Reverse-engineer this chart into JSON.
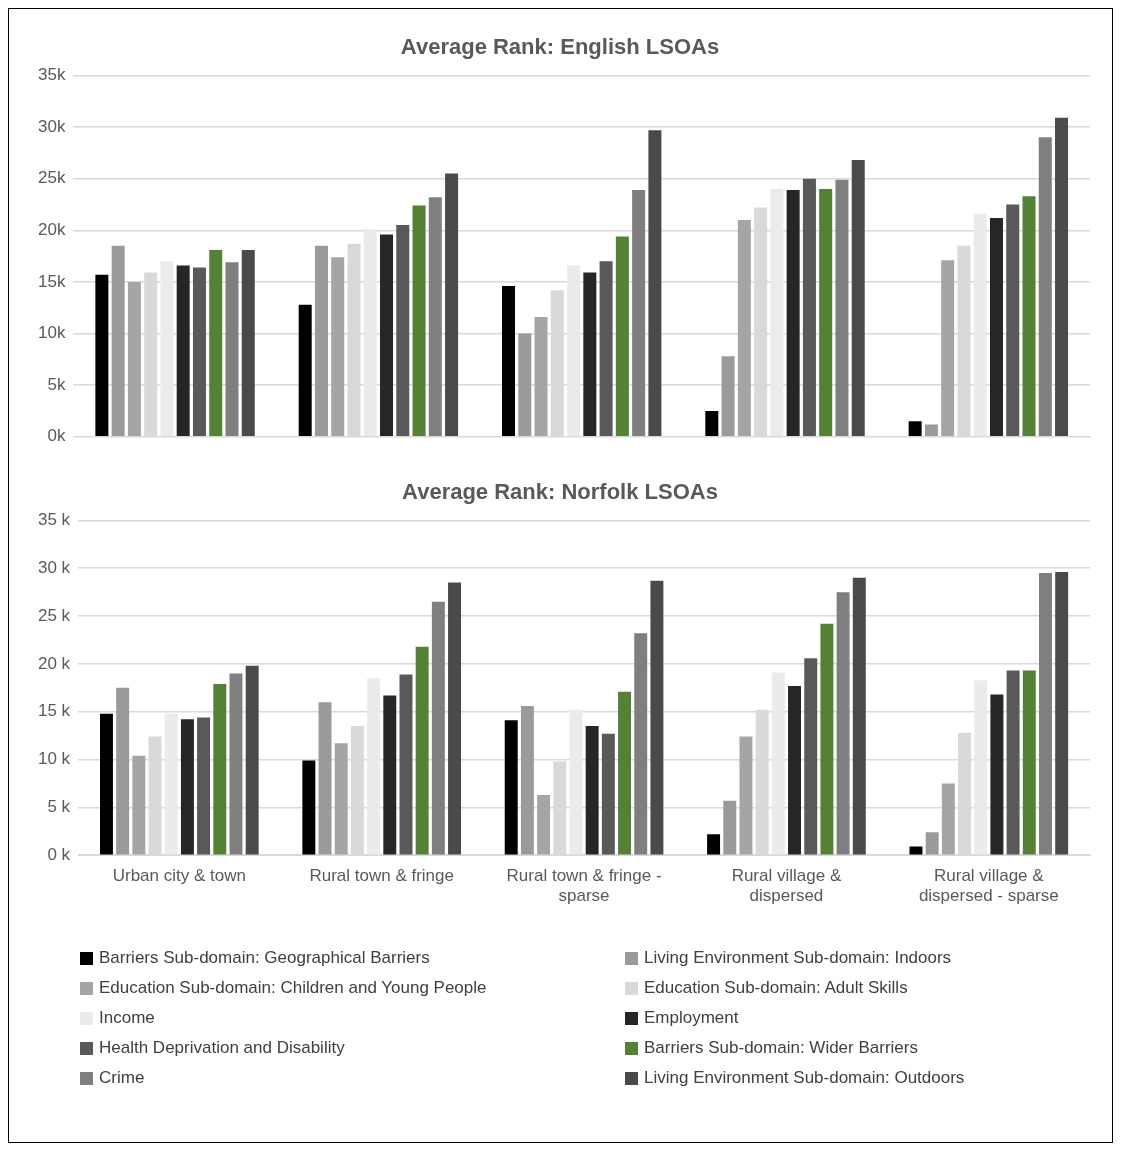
{
  "chart_data": [
    {
      "type": "bar",
      "title": "Average Rank: English LSOAs",
      "categories": [
        null,
        null,
        null,
        null,
        null
      ],
      "tick_labels": "y",
      "grid": "y",
      "legend": false,
      "ylim": [
        0,
        35000
      ],
      "yticks": [
        {
          "value": 0,
          "label": "0k"
        },
        {
          "value": 5000,
          "label": "5k"
        },
        {
          "value": 10000,
          "label": "10k"
        },
        {
          "value": 15000,
          "label": "15k"
        },
        {
          "value": 20000,
          "label": "20k"
        },
        {
          "value": 25000,
          "label": "25k"
        },
        {
          "value": 30000,
          "label": "30k"
        },
        {
          "value": 35000,
          "label": "35k"
        }
      ],
      "series": [
        {
          "color": "#000000",
          "values": [
            15700,
            12800,
            14600,
            2500,
            1500
          ]
        },
        {
          "color": "#9a9a9a",
          "values": [
            18500,
            18500,
            10000,
            7800,
            1200
          ]
        },
        {
          "color": "#a5a5a5",
          "values": [
            15000,
            17400,
            11600,
            21000,
            17100
          ]
        },
        {
          "color": "#d9d9d9",
          "values": [
            15900,
            18700,
            14200,
            22200,
            18500
          ]
        },
        {
          "color": "#ebebeb",
          "values": [
            17000,
            20100,
            16600,
            24000,
            21600
          ]
        },
        {
          "color": "#262626",
          "values": [
            16600,
            19600,
            15900,
            23900,
            21200
          ]
        },
        {
          "color": "#595959",
          "values": [
            16400,
            20500,
            17000,
            25000,
            22500
          ]
        },
        {
          "color": "#548235",
          "values": [
            18100,
            22400,
            19400,
            24000,
            23300
          ]
        },
        {
          "color": "#7f7f7f",
          "values": [
            16900,
            23200,
            23900,
            24900,
            29000
          ]
        },
        {
          "color": "#4a4a4a",
          "values": [
            18100,
            25500,
            29700,
            26800,
            30900
          ]
        }
      ]
    },
    {
      "type": "bar",
      "title": "Average Rank: Norfolk LSOAs",
      "categories": [
        "Urban city & town",
        "Rural town & fringe",
        "Rural town & fringe - sparse",
        "Rural village & dispersed",
        "Rural village & dispersed - sparse"
      ],
      "grid": "y",
      "legend": "bottom",
      "ylim": [
        0,
        35000
      ],
      "yticks": [
        {
          "value": 0,
          "label": "0 k"
        },
        {
          "value": 5000,
          "label": "5 k"
        },
        {
          "value": 10000,
          "label": "10 k"
        },
        {
          "value": 15000,
          "label": "15 k"
        },
        {
          "value": 20000,
          "label": "20 k"
        },
        {
          "value": 25000,
          "label": "25 k"
        },
        {
          "value": 30000,
          "label": "30 k"
        },
        {
          "value": 35000,
          "label": "35 k"
        }
      ],
      "series": [
        {
          "name": "Barriers Sub-domain:  Geographical Barriers",
          "color": "#000000",
          "values": [
            14800,
            9900,
            14100,
            2200,
            900
          ]
        },
        {
          "name": "Living Environment Sub-domain:  Indoors",
          "color": "#9a9a9a",
          "values": [
            17500,
            16000,
            15600,
            5700,
            2400
          ]
        },
        {
          "name": "Education Sub-domain: Children and Young People",
          "color": "#a5a5a5",
          "values": [
            10400,
            11700,
            6300,
            12400,
            7500
          ]
        },
        {
          "name": "Education Sub-domain: Adult Skills",
          "color": "#d9d9d9",
          "values": [
            12400,
            13500,
            9800,
            15200,
            12800
          ]
        },
        {
          "name": "Income",
          "color": "#ebebeb",
          "values": [
            14800,
            18500,
            15200,
            19100,
            18300
          ]
        },
        {
          "name": "Employment",
          "color": "#262626",
          "values": [
            14200,
            16700,
            13500,
            17700,
            16800
          ]
        },
        {
          "name": "Health Deprivation and Disability",
          "color": "#595959",
          "values": [
            14400,
            18900,
            12700,
            20600,
            19300
          ]
        },
        {
          "name": "Barriers Sub-domain:  Wider Barriers",
          "color": "#548235",
          "values": [
            17900,
            21800,
            17100,
            24200,
            19300
          ]
        },
        {
          "name": "Crime",
          "color": "#7f7f7f",
          "values": [
            19000,
            26500,
            23200,
            27500,
            29500
          ]
        },
        {
          "name": "Living Environment Sub-domain: Outdoors",
          "color": "#4a4a4a",
          "values": [
            19800,
            28500,
            28700,
            29000,
            29600
          ]
        }
      ]
    }
  ]
}
